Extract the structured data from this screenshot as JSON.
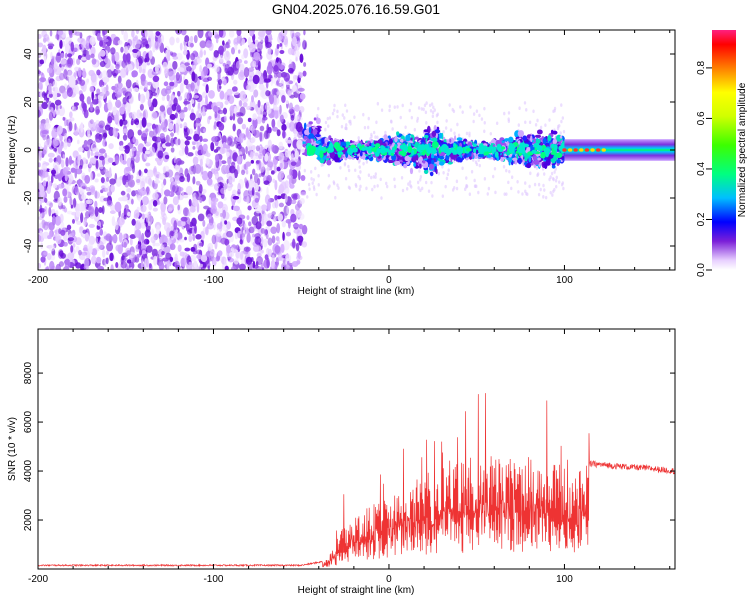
{
  "title": "GN04.2025.076.16.59.G01",
  "chart_data": [
    {
      "type": "heatmap",
      "xlabel": "Height of straight line (km)",
      "ylabel": "Frequency (Hz)",
      "xlim": [
        -200,
        163
      ],
      "ylim": [
        -50,
        50
      ],
      "xticks": [
        "-200",
        "-100",
        "0",
        "100"
      ],
      "yticks": [
        "-40",
        "-20",
        "0",
        "20",
        "40"
      ],
      "colorbar": {
        "label": "Normalized spectral amplitude",
        "range": [
          0,
          0.95
        ],
        "ticks": [
          "0.0",
          "0.2",
          "0.4",
          "0.6",
          "0.8"
        ]
      },
      "regions": [
        {
          "x_range": [
            -200,
            -48
          ],
          "freq_range": [
            -50,
            50
          ],
          "description": "broadband noise",
          "level": 0.08
        },
        {
          "x_range": [
            -48,
            100
          ],
          "freq_range": [
            -20,
            15
          ],
          "description": "signal band",
          "level": 0.25
        },
        {
          "x_range": [
            100,
            163
          ],
          "freq_range": [
            -3,
            3
          ],
          "description": "narrow carrier",
          "level": 0.5
        }
      ]
    },
    {
      "type": "line",
      "xlabel": "Height of straight line (km)",
      "ylabel": "SNR (10 * v/v)",
      "xlim": [
        -200,
        163
      ],
      "ylim": [
        0,
        9800
      ],
      "xticks": [
        "-200",
        "-100",
        "0",
        "100"
      ],
      "yticks": [
        "2000",
        "4000",
        "6000",
        "8000"
      ],
      "series": [
        {
          "color": "#ee3333",
          "x": [
            -200,
            -150,
            -100,
            -50,
            -38,
            -30,
            -20,
            -10,
            0,
            10,
            20,
            30,
            40,
            50,
            60,
            70,
            80,
            90,
            100,
            108,
            115,
            130,
            150,
            163
          ],
          "y": [
            150,
            150,
            150,
            150,
            300,
            1600,
            2000,
            2500,
            2800,
            3300,
            3700,
            3900,
            4200,
            4400,
            4500,
            4500,
            4400,
            4200,
            4000,
            3800,
            4300,
            4200,
            4100,
            4000
          ]
        }
      ]
    }
  ]
}
